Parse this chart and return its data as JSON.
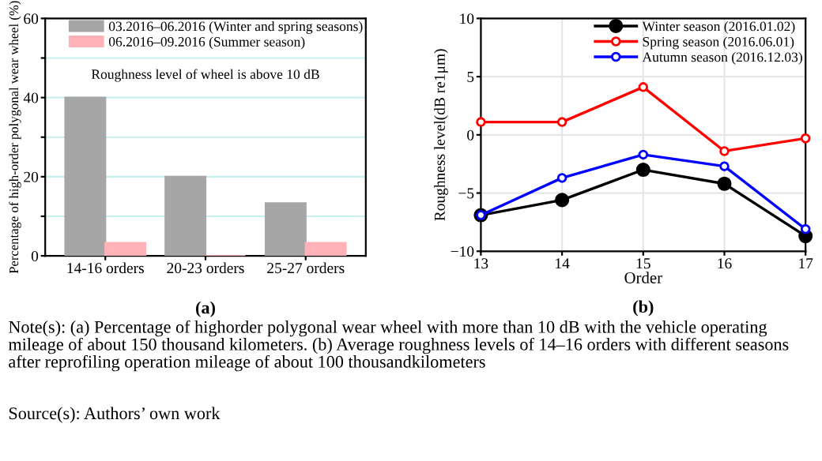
{
  "chart_data": [
    {
      "type": "bar",
      "subtitle": "(a)",
      "ylabel": "Percentage of high-order polygonal wear wheel (%)",
      "categories": [
        "14-16 orders",
        "20-23 orders",
        "25-27 orders"
      ],
      "series": [
        {
          "name": "03.2016–06.2016 (Winter and spring seasons)",
          "color": "#a6a6a6",
          "values": [
            40,
            20,
            13.3
          ]
        },
        {
          "name": "06.2016–09.2016 (Summer season)",
          "color": "#ffb3b8",
          "values": [
            3.3,
            0,
            3.3
          ]
        }
      ],
      "ylim": [
        0,
        60
      ],
      "yticks": [
        0,
        {
          "value": 10,
          "label": null
        },
        20,
        {
          "value": 30,
          "label": null
        },
        40,
        {
          "value": 50,
          "label": null
        },
        60
      ],
      "grid": "y",
      "legend": "top right",
      "annotations": [
        "Roughness level of wheel is above 10 dB",
        "Note(s): (a) Percentage of highorder polygonal wear wheel with more than 10 dB with the vehicle operating mileage of about 150 thousand kilometers. (b) Average roughness levels of 14–16 orders with different seasons after reprofiling operation mileage of about 100 thousandkilometers",
        "Source(s): Authors’ own work"
      ]
    },
    {
      "type": "line",
      "subtitle": "(b)",
      "xlabel": "Order",
      "ylabel": "Roughness level(dB re1μm)",
      "x": [
        13,
        14,
        15,
        16,
        17
      ],
      "series": [
        {
          "name": "Winter season (2016.01.02)",
          "color": "#000000",
          "values": [
            -6.9,
            -5.6,
            -3.0,
            -4.2,
            -8.7
          ]
        },
        {
          "name": "Spring season (2016.06.01)",
          "color": "#ff0000",
          "values": [
            1.1,
            1.1,
            4.1,
            -1.4,
            -0.3
          ]
        },
        {
          "name": "Autumn season (2016.12.03)",
          "color": "#0000ff",
          "values": [
            -6.9,
            -3.7,
            -1.7,
            -2.7,
            -8.1
          ]
        }
      ],
      "xlim": [
        13,
        17
      ],
      "xticks": [
        13,
        14,
        15,
        16,
        17
      ],
      "ylim": [
        -10,
        10
      ],
      "yticks": [
        -10,
        -5,
        0,
        5,
        10
      ],
      "grid": true,
      "legend": "top right",
      "marker": "circle",
      "line_style": "solid"
    }
  ]
}
